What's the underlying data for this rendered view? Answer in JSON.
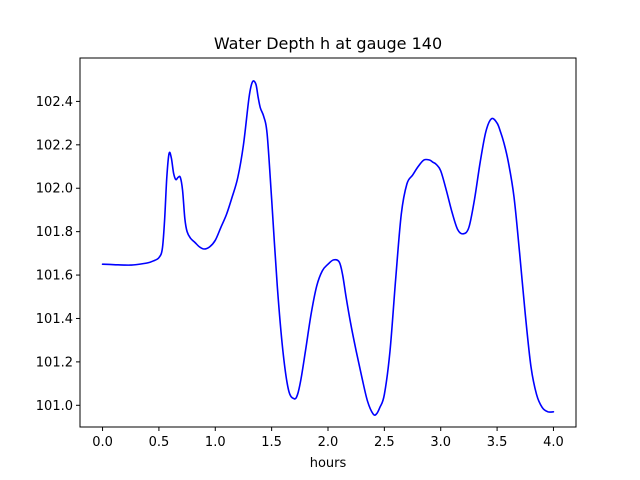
{
  "chart_data": {
    "type": "line",
    "title": "Water Depth h at gauge 140",
    "xlabel": "hours",
    "ylabel": "",
    "xlim": [
      -0.2,
      4.2
    ],
    "ylim": [
      100.9,
      102.6
    ],
    "xticks": [
      0.0,
      0.5,
      1.0,
      1.5,
      2.0,
      2.5,
      3.0,
      3.5,
      4.0
    ],
    "xtick_labels": [
      "0.0",
      "0.5",
      "1.0",
      "1.5",
      "2.0",
      "2.5",
      "3.0",
      "3.5",
      "4.0"
    ],
    "yticks": [
      101.0,
      101.2,
      101.4,
      101.6,
      101.8,
      102.0,
      102.2,
      102.4
    ],
    "ytick_labels": [
      "101.0",
      "101.2",
      "101.4",
      "101.6",
      "101.8",
      "102.0",
      "102.2",
      "102.4"
    ],
    "grid": false,
    "series": [
      {
        "name": "",
        "color": "#0000ff",
        "x": [
          0.0,
          0.1,
          0.2,
          0.25,
          0.3,
          0.4,
          0.45,
          0.5,
          0.53,
          0.55,
          0.57,
          0.59,
          0.61,
          0.63,
          0.65,
          0.67,
          0.69,
          0.71,
          0.73,
          0.75,
          0.78,
          0.82,
          0.86,
          0.9,
          0.95,
          1.0,
          1.05,
          1.1,
          1.15,
          1.2,
          1.25,
          1.3,
          1.33,
          1.36,
          1.38,
          1.4,
          1.43,
          1.46,
          1.5,
          1.55,
          1.6,
          1.65,
          1.7,
          1.73,
          1.76,
          1.8,
          1.85,
          1.9,
          1.95,
          2.0,
          2.05,
          2.1,
          2.13,
          2.16,
          2.2,
          2.25,
          2.3,
          2.35,
          2.4,
          2.43,
          2.46,
          2.5,
          2.55,
          2.6,
          2.65,
          2.7,
          2.75,
          2.8,
          2.85,
          2.9,
          2.93,
          2.96,
          3.0,
          3.05,
          3.1,
          3.15,
          3.2,
          3.25,
          3.3,
          3.35,
          3.4,
          3.45,
          3.5,
          3.53,
          3.56,
          3.6,
          3.65,
          3.7,
          3.75,
          3.8,
          3.85,
          3.9,
          3.95,
          4.0
        ],
        "y": [
          101.65,
          101.648,
          101.646,
          101.646,
          101.648,
          101.656,
          101.665,
          101.68,
          101.72,
          101.85,
          102.05,
          102.16,
          102.14,
          102.07,
          102.04,
          102.05,
          102.05,
          101.99,
          101.86,
          101.8,
          101.77,
          101.75,
          101.73,
          101.72,
          101.73,
          101.76,
          101.82,
          101.88,
          101.96,
          102.05,
          102.2,
          102.42,
          102.49,
          102.48,
          102.42,
          102.37,
          102.33,
          102.25,
          101.95,
          101.55,
          101.25,
          101.07,
          101.03,
          101.05,
          101.12,
          101.25,
          101.42,
          101.55,
          101.62,
          101.65,
          101.67,
          101.66,
          101.6,
          101.5,
          101.38,
          101.25,
          101.13,
          101.02,
          100.96,
          100.96,
          100.99,
          101.05,
          101.25,
          101.58,
          101.88,
          102.02,
          102.06,
          102.1,
          102.13,
          102.13,
          102.12,
          102.11,
          102.08,
          101.99,
          101.89,
          101.81,
          101.79,
          101.82,
          101.95,
          102.12,
          102.26,
          102.32,
          102.3,
          102.26,
          102.21,
          102.12,
          101.96,
          101.7,
          101.42,
          101.18,
          101.05,
          100.99,
          100.97,
          100.97
        ]
      }
    ]
  }
}
